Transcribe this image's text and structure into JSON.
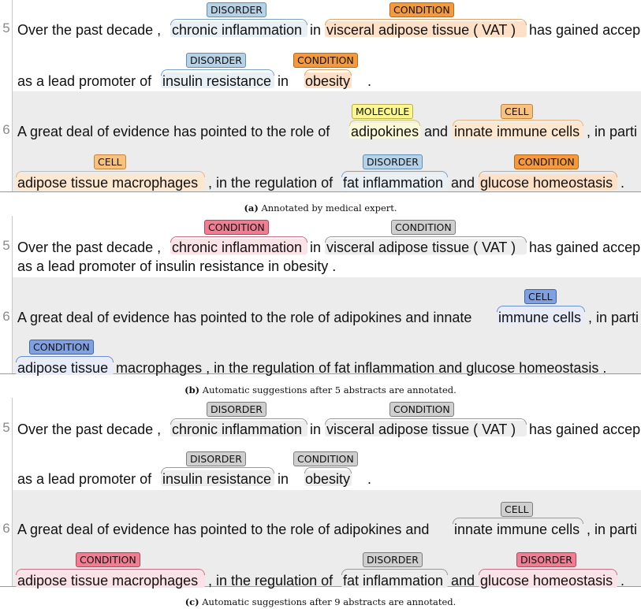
{
  "panel_a": {
    "line5_num": "5",
    "line6_num": "6",
    "s1": {
      "w1": "Over the past decade ,",
      "m1": "chronic inflammation",
      "w2": "in",
      "m2": "visceral adipose tissue ( VAT )",
      "w3": "has gained accep",
      "w4": "as a lead promoter of",
      "m3": "insulin resistance",
      "w5": "in",
      "m4": "obesity",
      "w6": "."
    },
    "s2": {
      "w1": "A great deal of evidence has pointed to the role of",
      "m1": "adipokines",
      "w2": "and",
      "m2": "innate immune cells",
      "w3": ", in parti",
      "m3": "adipose tissue macrophages",
      "w4": ", in the regulation of",
      "m4": "fat inflammation",
      "w5": "and",
      "m5": "glucose homeostasis",
      "w6": "."
    },
    "tags": {
      "chronic": "DISORDER",
      "vat": "CONDITION",
      "insulin": "DISORDER",
      "obesity": "CONDITION",
      "adipokines": "MOLECULE",
      "innate": "CELL",
      "macro": "CELL",
      "fat": "DISORDER",
      "glucose": "CONDITION"
    },
    "caption_label": "(a)",
    "caption_text": "Annotated by medical expert."
  },
  "panel_b": {
    "line5_num": "5",
    "line6_num": "6",
    "s1": {
      "w1": "Over the past decade ,",
      "m1": "chronic inflammation",
      "w2": "in",
      "m2": "visceral adipose tissue ( VAT )",
      "w3": "has gained accep",
      "line2": "as a lead promoter of insulin resistance in obesity ."
    },
    "s2": {
      "w1": "A great deal of evidence has pointed to the role of adipokines and innate",
      "m1": "immune cells",
      "w2": ", in parti",
      "m2": "adipose tissue",
      "w3": "macrophages , in the regulation of fat inflammation and glucose homeostasis ."
    },
    "tags": {
      "chronic": "CONDITION",
      "vat": "CONDITION",
      "immune": "CELL",
      "adipose": "CONDITION"
    },
    "caption_label": "(b)",
    "caption_text": "Automatic suggestions after 5 abstracts are annotated."
  },
  "panel_c": {
    "line5_num": "5",
    "line6_num": "6",
    "s1": {
      "w1": "Over the past decade ,",
      "m1": "chronic inflammation",
      "w2": "in",
      "m2": "visceral adipose tissue ( VAT )",
      "w3": "has gained accep",
      "w4": "as a lead promoter of",
      "m3": "insulin resistance",
      "w5": "in",
      "m4": "obesity",
      "w6": "."
    },
    "s2": {
      "w1": "A great deal of evidence has pointed to the role of adipokines and",
      "m1": "innate immune cells",
      "w2": ", in parti",
      "m2": "adipose tissue macrophages",
      "w3": ", in the regulation of",
      "m3": "fat inflammation",
      "w4": "and",
      "m4": "glucose homeostasis",
      "w5": "."
    },
    "tags": {
      "chronic": "DISORDER",
      "vat": "CONDITION",
      "insulin": "DISORDER",
      "obesity": "CONDITION",
      "innate": "CELL",
      "macro": "CONDITION",
      "fat": "DISORDER",
      "glucose": "DISORDER"
    },
    "caption_label": "(c)",
    "caption_text": "Automatic suggestions after 9 abstracts are annotated."
  },
  "colors": {
    "disorder_tag": "#b6d2e6",
    "condition_tag": "#f49a3d",
    "cell_tag": "#f7c280",
    "molecule_tag": "#fbf790",
    "suggest_red": "#f07d92",
    "suggest_grey": "#cfcfcf",
    "suggest_blue": "#7fa1e3",
    "sentence6_background": "#ececec",
    "panel_a_bottom_rule": "#7d9bd4"
  }
}
